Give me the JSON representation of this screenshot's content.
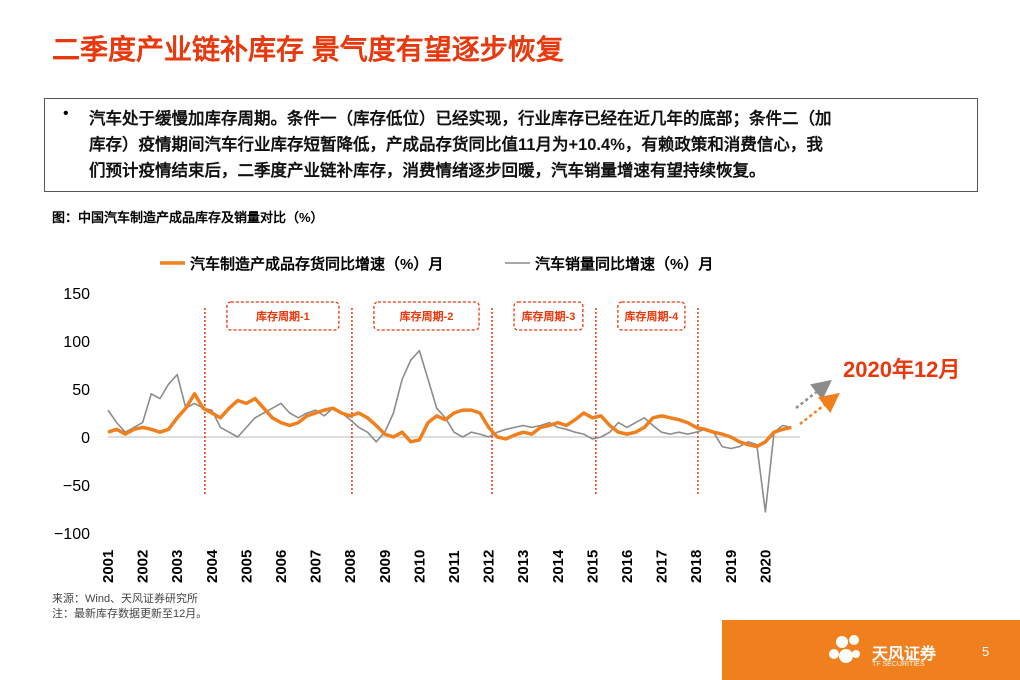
{
  "header": {
    "title": "二季度产业链补库存 景气度有望逐步恢复"
  },
  "summary": {
    "bullet": "•",
    "lines": [
      "汽车处于缓慢加库存周期。条件一（库存低位）已经实现，行业库存已经在近几年的底部；条件二（加",
      "库存）疫情期间汽车行业库存短暂降低，产成品存货同比值11月为+10.4%，有赖政策和消费信心，我",
      "们预计疫情结束后，二季度产业链补库存，消费情绪逐步回暖，汽车销量增速有望持续恢复。"
    ]
  },
  "chart_data": {
    "type": "line",
    "title": "图：中国汽车制造产成品库存及销量对比（%）",
    "x": [
      2001,
      2001.25,
      2001.5,
      2001.75,
      2002,
      2002.25,
      2002.5,
      2002.75,
      2003,
      2003.25,
      2003.5,
      2003.75,
      2004,
      2004.25,
      2004.5,
      2004.75,
      2005,
      2005.25,
      2005.5,
      2005.75,
      2006,
      2006.25,
      2006.5,
      2006.75,
      2007,
      2007.25,
      2007.5,
      2007.75,
      2008,
      2008.25,
      2008.5,
      2008.75,
      2009,
      2009.25,
      2009.5,
      2009.75,
      2010,
      2010.25,
      2010.5,
      2010.75,
      2011,
      2011.25,
      2011.5,
      2011.75,
      2012,
      2012.25,
      2012.5,
      2012.75,
      2013,
      2013.25,
      2013.5,
      2013.75,
      2014,
      2014.25,
      2014.5,
      2014.75,
      2015,
      2015.25,
      2015.5,
      2015.75,
      2016,
      2016.25,
      2016.5,
      2016.75,
      2017,
      2017.25,
      2017.5,
      2017.75,
      2018,
      2018.25,
      2018.5,
      2018.75,
      2019,
      2019.25,
      2019.5,
      2019.75,
      2020,
      2020.25,
      2020.5,
      2020.75
    ],
    "series": [
      {
        "name": "汽车制造产成品存货同比增速（%）月",
        "color": "#f07f1e",
        "width": 3.5,
        "values": [
          5,
          8,
          3,
          8,
          10,
          8,
          5,
          8,
          20,
          30,
          45,
          30,
          25,
          20,
          30,
          38,
          35,
          40,
          30,
          20,
          15,
          12,
          15,
          22,
          25,
          28,
          30,
          25,
          22,
          25,
          20,
          12,
          3,
          0,
          5,
          -5,
          -3,
          15,
          22,
          18,
          25,
          28,
          28,
          25,
          10,
          0,
          -2,
          2,
          5,
          3,
          10,
          12,
          15,
          12,
          18,
          25,
          20,
          22,
          12,
          5,
          3,
          5,
          10,
          20,
          22,
          20,
          18,
          15,
          10,
          8,
          5,
          3,
          0,
          -5,
          -8,
          -10,
          -5,
          5,
          8,
          10
        ]
      },
      {
        "name": "汽车销量同比增速（%）月",
        "color": "#8c8c8c",
        "width": 1.6,
        "values": [
          28,
          15,
          5,
          10,
          15,
          45,
          40,
          55,
          65,
          30,
          35,
          30,
          28,
          10,
          5,
          0,
          10,
          20,
          25,
          30,
          35,
          25,
          20,
          25,
          28,
          22,
          30,
          25,
          18,
          10,
          5,
          -5,
          5,
          25,
          60,
          80,
          90,
          60,
          30,
          20,
          5,
          0,
          5,
          3,
          0,
          5,
          8,
          10,
          12,
          10,
          12,
          15,
          10,
          8,
          5,
          3,
          -2,
          0,
          5,
          15,
          10,
          15,
          20,
          12,
          5,
          3,
          5,
          3,
          5,
          8,
          5,
          -10,
          -12,
          -10,
          -5,
          -8,
          -78,
          5,
          12,
          10
        ]
      }
    ],
    "xlim": [
      2001,
      2021
    ],
    "xticks": [
      2001,
      2002,
      2003,
      2004,
      2005,
      2006,
      2007,
      2008,
      2009,
      2010,
      2011,
      2012,
      2013,
      2014,
      2015,
      2016,
      2017,
      2018,
      2019,
      2020
    ],
    "ylim": [
      -100,
      150
    ],
    "yticks": [
      {
        "value": -100,
        "label": "−100"
      },
      {
        "value": -50,
        "label": "−50"
      },
      0,
      50,
      100,
      150
    ],
    "vlines": [
      2003.8,
      2008.05,
      2012.1,
      2015.1,
      2018.05
    ],
    "cycles": [
      "库存周期-1",
      "库存周期-2",
      "库存周期-3",
      "库存周期-4"
    ],
    "annotation": "2020年12月"
  },
  "notes": [
    "来源：Wind、天风证券研究所",
    "注：最新库存数据更新至12月。"
  ],
  "footer": {
    "brand": "天风证券",
    "brand_en": "TF SECURITIES",
    "page": "5"
  }
}
